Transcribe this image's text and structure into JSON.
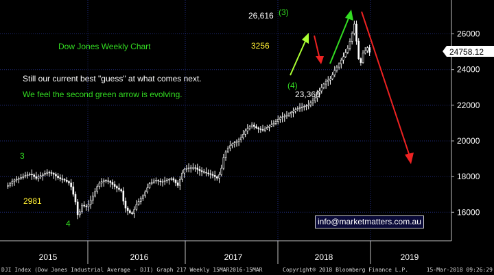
{
  "chart_data": {
    "type": "candlestick",
    "title": "Dow Jones Weekly Chart",
    "ylim": [
      14400,
      27900
    ],
    "y_ticks": [
      16000,
      18000,
      20000,
      22000,
      24000,
      26000
    ],
    "y_tick_labels": [
      "16000",
      "18000",
      "20000",
      "22000",
      "24000",
      "26000"
    ],
    "x_labels": [
      "2015",
      "2016",
      "2017",
      "2018",
      "2019"
    ],
    "last_price": 24758.12,
    "last_price_label": "24758.12",
    "weekly_close": [
      [
        2015.0,
        17500
      ],
      [
        2015.05,
        17800
      ],
      [
        2015.1,
        17900
      ],
      [
        2015.15,
        18050
      ],
      [
        2015.2,
        18150
      ],
      [
        2015.25,
        17900
      ],
      [
        2015.3,
        18100
      ],
      [
        2015.35,
        18250
      ],
      [
        2015.4,
        18150
      ],
      [
        2015.45,
        17900
      ],
      [
        2015.5,
        17800
      ],
      [
        2015.55,
        17600
      ],
      [
        2015.6,
        16500
      ],
      [
        2015.62,
        15666
      ],
      [
        2015.65,
        16400
      ],
      [
        2015.7,
        16300
      ],
      [
        2015.75,
        16900
      ],
      [
        2015.8,
        17600
      ],
      [
        2015.85,
        17800
      ],
      [
        2015.9,
        17700
      ],
      [
        2015.95,
        17400
      ],
      [
        2016.0,
        17200
      ],
      [
        2016.03,
        16300
      ],
      [
        2016.07,
        16000
      ],
      [
        2016.1,
        15900
      ],
      [
        2016.13,
        16400
      ],
      [
        2016.2,
        17000
      ],
      [
        2016.25,
        17600
      ],
      [
        2016.3,
        17800
      ],
      [
        2016.35,
        17700
      ],
      [
        2016.4,
        17800
      ],
      [
        2016.45,
        17900
      ],
      [
        2016.5,
        17500
      ],
      [
        2016.55,
        18400
      ],
      [
        2016.6,
        18500
      ],
      [
        2016.65,
        18500
      ],
      [
        2016.7,
        18300
      ],
      [
        2016.75,
        18200
      ],
      [
        2016.8,
        18100
      ],
      [
        2016.85,
        17900
      ],
      [
        2016.88,
        18300
      ],
      [
        2016.9,
        19000
      ],
      [
        2016.93,
        19500
      ],
      [
        2016.97,
        19800
      ],
      [
        2017.0,
        19900
      ],
      [
        2017.05,
        20100
      ],
      [
        2017.1,
        20600
      ],
      [
        2017.15,
        20900
      ],
      [
        2017.2,
        20700
      ],
      [
        2017.25,
        20600
      ],
      [
        2017.3,
        20800
      ],
      [
        2017.35,
        21000
      ],
      [
        2017.4,
        21300
      ],
      [
        2017.45,
        21400
      ],
      [
        2017.5,
        21600
      ],
      [
        2017.55,
        21800
      ],
      [
        2017.6,
        21900
      ],
      [
        2017.65,
        22000
      ],
      [
        2017.7,
        22300
      ],
      [
        2017.75,
        22800
      ],
      [
        2017.8,
        23300
      ],
      [
        2017.85,
        23500
      ],
      [
        2017.88,
        23900
      ],
      [
        2017.92,
        24300
      ],
      [
        2017.96,
        24700
      ],
      [
        2018.0,
        25200
      ],
      [
        2018.03,
        25800
      ],
      [
        2018.06,
        26616
      ],
      [
        2018.09,
        24800
      ],
      [
        2018.11,
        24200
      ],
      [
        2018.13,
        24900
      ],
      [
        2018.16,
        25100
      ],
      [
        2018.18,
        25300
      ],
      [
        2018.2,
        24758
      ]
    ]
  },
  "annotations": {
    "title": "Dow Jones Weekly Chart",
    "guess": "Still our current best \"guess\" at what comes next.",
    "green_note": "We feel the second green arrow is evolving.",
    "peak_value": "26,616",
    "wave3": "(3)",
    "wave4": "(4)",
    "low_value": "23,360",
    "points_3256": "3256",
    "wave_3_left": "3",
    "points_2981": "2981",
    "wave_4_left": "4",
    "email": "info@marketmatters.com.au"
  },
  "footer": {
    "left": "DJI Index (Dow Jones Industrial Average - DJI) Graph 217  Weekly 15MAR2016-15MAR",
    "mid": "Copyright® 2018 Bloomberg Finance L.P.",
    "right": "15-Mar-2018 09:26:29"
  },
  "colors": {
    "background": "#000000",
    "grid": "#1f2a7a",
    "candles": "#ffffff",
    "green": "#33dd22",
    "yellow": "#ffee33",
    "red": "#ee2222",
    "lime": "#aaff33"
  }
}
